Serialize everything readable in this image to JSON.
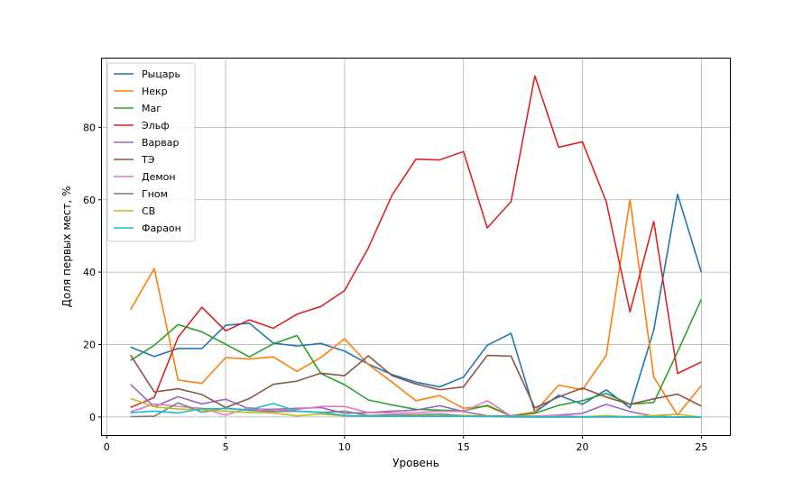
{
  "chart_data": {
    "type": "line",
    "title": "",
    "xlabel": "Уровень",
    "ylabel": "Доля первых мест, %",
    "xlim": [
      -0.2,
      26.2
    ],
    "ylim": [
      -5.0,
      99.0
    ],
    "xticks": [
      0,
      5,
      10,
      15,
      20,
      25
    ],
    "yticks": [
      0,
      20,
      40,
      60,
      80
    ],
    "grid": true,
    "legend_position": "top-left",
    "x": [
      1,
      2,
      3,
      4,
      5,
      6,
      7,
      8,
      9,
      10,
      11,
      12,
      13,
      14,
      15,
      16,
      17,
      18,
      19,
      20,
      21,
      22,
      23,
      24,
      25
    ],
    "series": [
      {
        "name": "Рыцарь",
        "color": "#1f77b4",
        "values": [
          19.3,
          16.7,
          18.9,
          18.9,
          25.3,
          25.9,
          20.4,
          19.6,
          20.3,
          18.2,
          14.6,
          11.7,
          9.6,
          8.3,
          11.0,
          19.8,
          23.1,
          1.3,
          6.0,
          3.5,
          7.5,
          2.5,
          24.0,
          61.5,
          40.0
        ]
      },
      {
        "name": "Некр",
        "color": "#ff7f0e",
        "values": [
          29.6,
          41.0,
          10.2,
          9.3,
          16.4,
          16.0,
          16.6,
          12.6,
          16.4,
          21.6,
          14.5,
          9.6,
          4.5,
          5.9,
          2.4,
          3.0,
          0.3,
          1.4,
          8.8,
          7.5,
          17.0,
          60.0,
          11.0,
          0.5,
          8.7
        ]
      },
      {
        "name": "Маг",
        "color": "#2ca02c",
        "values": [
          15.6,
          19.8,
          25.5,
          23.5,
          20.1,
          16.6,
          20.2,
          22.5,
          12.0,
          8.9,
          4.7,
          3.3,
          2.1,
          1.9,
          1.7,
          3.2,
          0.3,
          1.0,
          3.2,
          4.5,
          6.5,
          3.5,
          4.0,
          18.0,
          32.5
        ]
      },
      {
        "name": "Эльф",
        "color": "#d62728",
        "values": [
          2.6,
          5.4,
          22.0,
          30.3,
          23.8,
          26.8,
          24.5,
          28.4,
          30.5,
          34.9,
          46.7,
          61.3,
          71.2,
          71.0,
          73.3,
          52.2,
          59.5,
          94.2,
          74.5,
          76.0,
          59.5,
          29.0,
          54.0,
          12.0,
          15.2
        ]
      },
      {
        "name": "Варвар",
        "color": "#9467bd",
        "values": [
          9.0,
          2.8,
          5.6,
          3.6,
          4.9,
          2.2,
          2.1,
          2.4,
          2.6,
          1.0,
          1.2,
          1.6,
          1.9,
          3.1,
          1.5,
          0.3,
          0.3,
          0.2,
          0.5,
          1.0,
          3.5,
          1.5,
          0.2,
          0.0,
          0.0
        ]
      },
      {
        "name": "ТЭ",
        "color": "#8c564b",
        "values": [
          17.1,
          6.9,
          7.8,
          6.2,
          2.6,
          5.1,
          9.0,
          9.9,
          12.1,
          11.4,
          16.9,
          11.4,
          9.1,
          7.5,
          8.3,
          17.0,
          16.8,
          2.5,
          5.5,
          8.0,
          5.5,
          3.5,
          5.0,
          6.3,
          3.0
        ]
      },
      {
        "name": "Демон",
        "color": "#e377c2",
        "values": [
          1.4,
          3.6,
          2.9,
          2.4,
          0.5,
          2.6,
          1.6,
          2.1,
          2.9,
          2.9,
          1.2,
          1.1,
          1.1,
          1.6,
          1.5,
          4.5,
          0.2,
          0.3,
          0.3,
          0.1,
          0.1,
          0.1,
          0.0,
          0.0,
          0.0
        ]
      },
      {
        "name": "Гном",
        "color": "#7f7f7f",
        "values": [
          0.1,
          0.2,
          3.9,
          1.3,
          2.5,
          1.8,
          1.5,
          1.6,
          1.2,
          1.6,
          0.4,
          0.6,
          0.6,
          0.8,
          0.4,
          0.2,
          0.0,
          0.0,
          0.0,
          0.0,
          0.0,
          0.0,
          0.0,
          0.0,
          0.0
        ]
      },
      {
        "name": "СВ",
        "color": "#bcbd22",
        "values": [
          5.1,
          2.8,
          2.2,
          2.0,
          1.6,
          1.2,
          1.1,
          0.3,
          0.8,
          0.3,
          0.3,
          0.2,
          0.4,
          0.3,
          0.4,
          0.2,
          0.1,
          0.1,
          0.0,
          0.0,
          0.4,
          0.0,
          0.4,
          0.7,
          0.0
        ]
      },
      {
        "name": "Фараон",
        "color": "#17becf",
        "values": [
          1.2,
          1.6,
          1.1,
          2.3,
          2.3,
          2.0,
          3.7,
          1.6,
          1.3,
          0.4,
          0.2,
          0.2,
          0.2,
          0.2,
          0.2,
          0.1,
          0.1,
          0.0,
          0.0,
          0.0,
          0.1,
          0.0,
          0.0,
          0.0,
          0.0
        ]
      }
    ]
  }
}
